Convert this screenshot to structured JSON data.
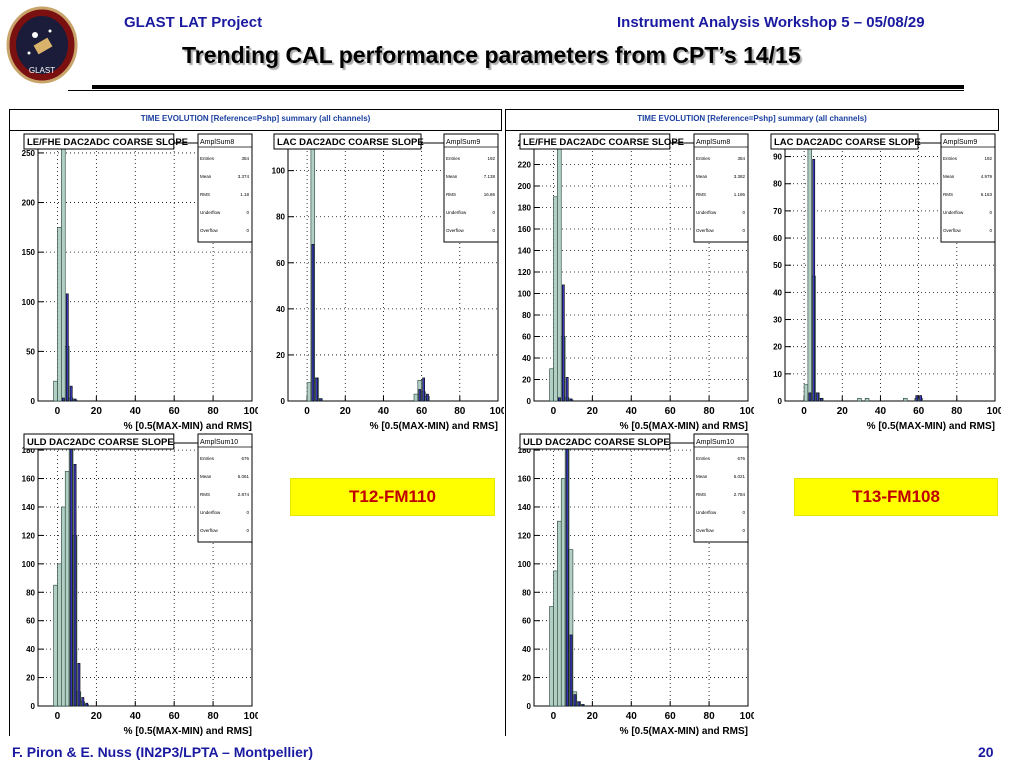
{
  "header": {
    "left": "GLAST LAT Project",
    "right": "Instrument Analysis Workshop 5 – 05/08/29",
    "title": "Trending CAL performance parameters from CPT’s 14/15",
    "logo_text": "GLAST"
  },
  "footer": {
    "left": "F. Piron & E. Nuss  (IN2P3/LPTA – Montpellier)",
    "page": "20"
  },
  "canvas_title": "TIME EVOLUTION [Reference=Pshp] summary (all channels)",
  "labels": {
    "left": "T12-FM110",
    "right": "T13-FM108"
  },
  "colors": {
    "header_blue": "#1a1aa0",
    "tag_bg": "#ffff00",
    "tag_text": "#c00000",
    "ref_fill": "#b3cfc4",
    "cur_fill": "#3a3ab8"
  },
  "chart_data": [
    {
      "type": "bar",
      "title": "LE/FHE DAC2ADC COARSE SLOPE",
      "xlabel": "% [0.5(MAX-MIN) and RMS]",
      "xlim": [
        -10,
        100
      ],
      "ylim": [
        0,
        260
      ],
      "xticks": [
        0,
        20,
        40,
        60,
        80,
        100
      ],
      "yticks": [
        0,
        50,
        100,
        150,
        200,
        250
      ],
      "yticklabels": [
        "0",
        "50",
        "100",
        "150",
        "200",
        "250"
      ],
      "stats": {
        "name": "AmplSum8",
        "Entries": "384",
        "Mean": "3.374",
        "RMS": "1.18",
        "Underflow": "0",
        "Overflow": "0"
      },
      "series": [
        {
          "role": "reference",
          "x": [
            -2,
            0,
            2,
            4,
            6,
            8
          ],
          "values": [
            20,
            175,
            260,
            55,
            3,
            1
          ]
        },
        {
          "role": "current",
          "x": [
            2,
            4,
            6,
            8
          ],
          "values": [
            3,
            108,
            15,
            2
          ]
        }
      ]
    },
    {
      "type": "bar",
      "title": "LAC DAC2ADC COARSE SLOPE",
      "xlabel": "% [0.5(MAX-MIN) and RMS]",
      "xlim": [
        -10,
        100
      ],
      "ylim": [
        0,
        112
      ],
      "xticks": [
        0,
        20,
        40,
        60,
        80,
        100
      ],
      "yticks": [
        0,
        20,
        40,
        60,
        80,
        100
      ],
      "yticklabels": [
        "0",
        "20",
        "40",
        "60",
        "80",
        "100"
      ],
      "stats": {
        "name": "AmplSum9",
        "Entries": "192",
        "Mean": "7.138",
        "RMS": "16.86",
        "Underflow": "0",
        "Overflow": "0"
      },
      "series": [
        {
          "role": "reference",
          "x": [
            0,
            2,
            4,
            6,
            56,
            58,
            60,
            62
          ],
          "values": [
            8,
            112,
            10,
            1,
            3,
            9,
            4,
            2
          ]
        },
        {
          "role": "current",
          "x": [
            2,
            4,
            6,
            58,
            60,
            62
          ],
          "values": [
            68,
            10,
            1,
            5,
            10,
            3
          ]
        }
      ]
    },
    {
      "type": "bar",
      "title": "LE/FHE DAC2ADC COARSE SLOPE",
      "xlabel": "% [0.5(MAX-MIN) and RMS]",
      "xlim": [
        -10,
        100
      ],
      "ylim": [
        0,
        240
      ],
      "xticks": [
        0,
        20,
        40,
        60,
        80,
        100
      ],
      "yticks": [
        0,
        20,
        40,
        60,
        80,
        100,
        120,
        140,
        160,
        180,
        200,
        220,
        240
      ],
      "yticklabels": [
        "0",
        "20",
        "40",
        "60",
        "80",
        "100",
        "120",
        "140",
        "160",
        "180",
        "200",
        "220",
        "240"
      ],
      "stats": {
        "name": "AmplSum8",
        "Entries": "384",
        "Mean": "3.382",
        "RMS": "1.186",
        "Underflow": "0",
        "Overflow": "0"
      },
      "series": [
        {
          "role": "reference",
          "x": [
            -2,
            0,
            2,
            4,
            6,
            8
          ],
          "values": [
            30,
            190,
            240,
            60,
            3,
            1
          ]
        },
        {
          "role": "current",
          "x": [
            2,
            4,
            6,
            8
          ],
          "values": [
            3,
            108,
            22,
            2
          ]
        }
      ]
    },
    {
      "type": "bar",
      "title": "LAC DAC2ADC COARSE SLOPE",
      "xlabel": "% [0.5(MAX-MIN) and RMS]",
      "xlim": [
        -10,
        100
      ],
      "ylim": [
        0,
        95
      ],
      "xticks": [
        0,
        20,
        40,
        60,
        80,
        100
      ],
      "yticks": [
        0,
        10,
        20,
        30,
        40,
        50,
        60,
        70,
        80,
        90
      ],
      "yticklabels": [
        "0",
        "10",
        "20",
        "30",
        "40",
        "50",
        "60",
        "70",
        "80",
        "90"
      ],
      "stats": {
        "name": "AmplSum9",
        "Entries": "192",
        "Mean": "4.979",
        "RMS": "6.163",
        "Underflow": "0",
        "Overflow": "0"
      },
      "series": [
        {
          "role": "reference",
          "x": [
            0,
            2,
            4,
            6,
            8,
            28,
            32,
            52,
            58,
            60
          ],
          "values": [
            6,
            95,
            46,
            3,
            1,
            1,
            1,
            1,
            1,
            1
          ]
        },
        {
          "role": "current",
          "x": [
            2,
            4,
            6,
            8,
            58,
            60
          ],
          "values": [
            3,
            89,
            3,
            1,
            2,
            2
          ]
        }
      ]
    },
    {
      "type": "bar",
      "title": "ULD DAC2ADC COARSE SLOPE",
      "xlabel": "% [0.5(MAX-MIN) and RMS]",
      "xlim": [
        -10,
        100
      ],
      "ylim": [
        0,
        185
      ],
      "xticks": [
        0,
        20,
        40,
        60,
        80,
        100
      ],
      "yticks": [
        0,
        20,
        40,
        60,
        80,
        100,
        120,
        140,
        160,
        180
      ],
      "yticklabels": [
        "0",
        "20",
        "40",
        "60",
        "80",
        "100",
        "120",
        "140",
        "160",
        "180"
      ],
      "stats": {
        "name": "AmplSum10",
        "Entries": "676",
        "Mean": "5.061",
        "RMS": "2.874",
        "Underflow": "0",
        "Overflow": "0"
      },
      "series": [
        {
          "role": "reference",
          "x": [
            -2,
            0,
            2,
            4,
            6,
            8,
            10,
            12,
            14
          ],
          "values": [
            85,
            100,
            140,
            165,
            185,
            120,
            10,
            3,
            1
          ]
        },
        {
          "role": "current",
          "x": [
            6,
            8,
            10,
            12,
            14
          ],
          "values": [
            185,
            170,
            30,
            6,
            2
          ]
        }
      ]
    },
    {
      "type": "bar",
      "title": "ULD DAC2ADC COARSE SLOPE",
      "xlabel": "% [0.5(MAX-MIN) and RMS]",
      "xlim": [
        -10,
        100
      ],
      "ylim": [
        0,
        185
      ],
      "xticks": [
        0,
        20,
        40,
        60,
        80,
        100
      ],
      "yticks": [
        0,
        20,
        40,
        60,
        80,
        100,
        120,
        140,
        160,
        180
      ],
      "yticklabels": [
        "0",
        "20",
        "40",
        "60",
        "80",
        "100",
        "120",
        "140",
        "160",
        "180"
      ],
      "stats": {
        "name": "AmplSum10",
        "Entries": "676",
        "Mean": "5.021",
        "RMS": "2.784",
        "Underflow": "0",
        "Overflow": "0"
      },
      "series": [
        {
          "role": "reference",
          "x": [
            -2,
            0,
            2,
            4,
            6,
            8,
            10,
            12,
            14
          ],
          "values": [
            70,
            95,
            130,
            160,
            185,
            110,
            10,
            3,
            1
          ]
        },
        {
          "role": "current",
          "x": [
            6,
            8,
            10,
            12,
            14
          ],
          "values": [
            185,
            50,
            8,
            3,
            1
          ]
        }
      ]
    }
  ]
}
